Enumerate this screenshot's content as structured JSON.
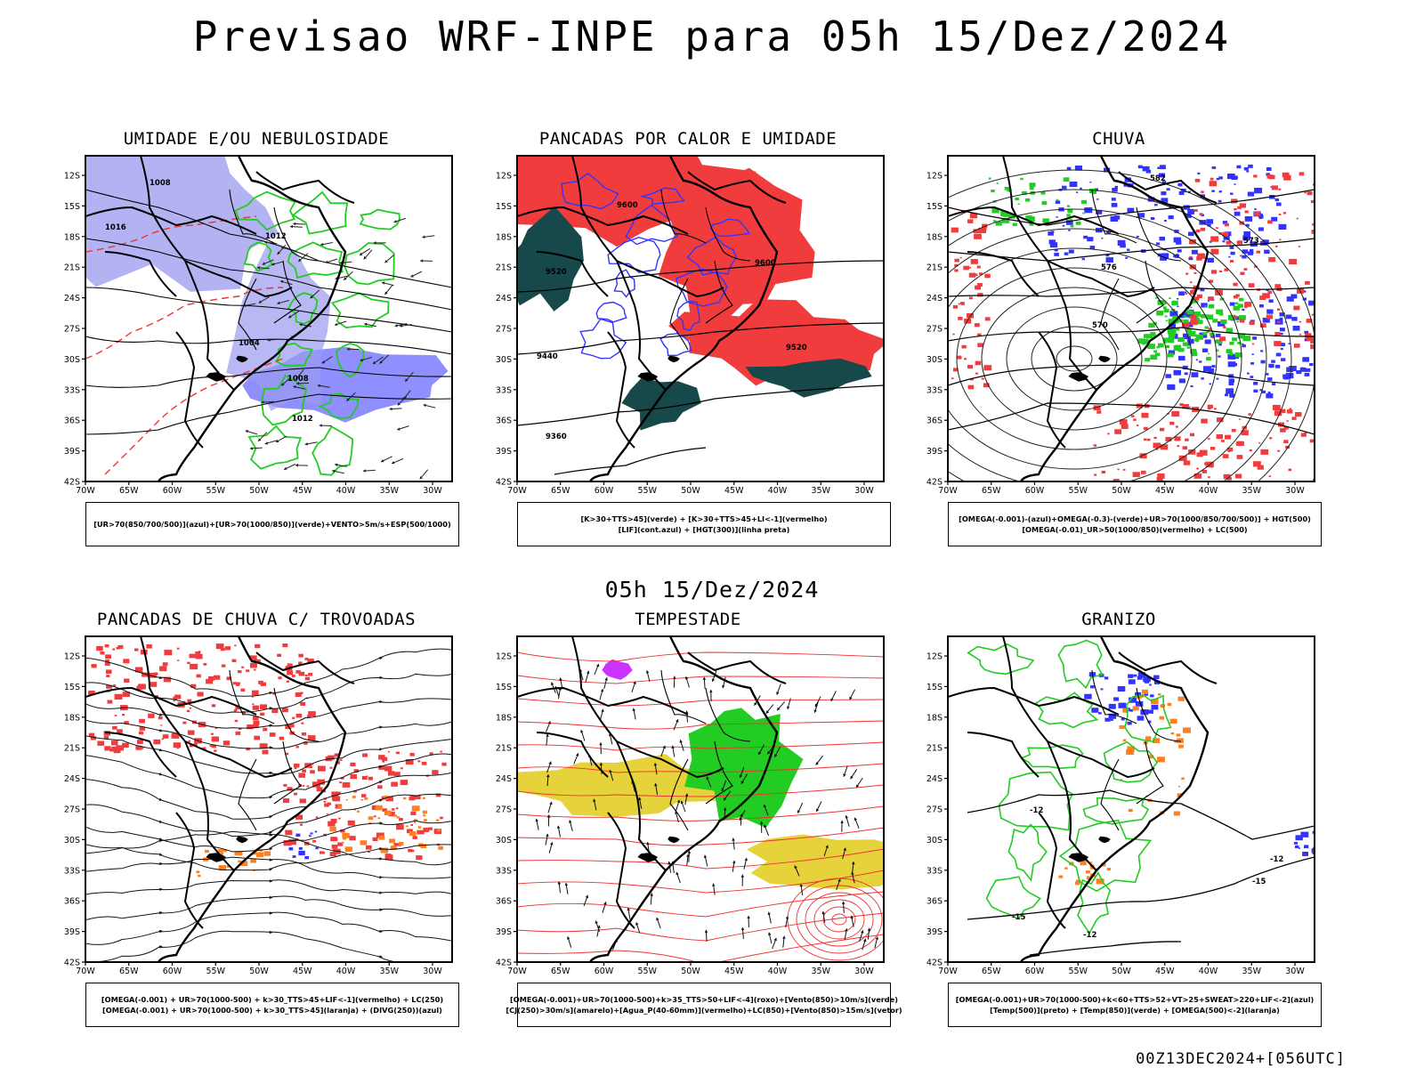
{
  "page": {
    "title": "Previsao WRF-INPE  para 05h 15/Dez/2024",
    "subtitle": "05h 15/Dez/2024",
    "footer": "00Z13DEC2024+[056UTC]"
  },
  "axes": {
    "lat_ticks": [
      "12S",
      "15S",
      "18S",
      "21S",
      "24S",
      "27S",
      "30S",
      "33S",
      "36S",
      "39S",
      "42S"
    ],
    "lon_ticks": [
      "70W",
      "65W",
      "60W",
      "55W",
      "50W",
      "45W",
      "40W",
      "35W",
      "30W"
    ]
  },
  "panels": [
    {
      "title": "UMIDADE E/OU NEBULOSIDADE",
      "legend": [
        "[UR>70(850/700/500)](azul)+[UR>70(1000/850)](verde)+VENTO>5m/s+ESP(500/1000)"
      ]
    },
    {
      "title": "PANCADAS POR CALOR E UMIDADE",
      "legend": [
        "[K>30+TTS>45](verde) + [K>30+TTS>45+LI<-1](vermelho)",
        "[LIF](cont.azul) + [HGT(300)](linha preta)"
      ]
    },
    {
      "title": "CHUVA",
      "legend": [
        "[OMEGA(-0.001)-(azul)+OMEGA(-0.3)-(verde)+UR>70(1000/850/700/500)] + HGT(500)",
        "[OMEGA(-0.01)_UR>50(1000/850)(vermelho) + LC(500)"
      ]
    },
    {
      "title": "PANCADAS DE CHUVA C/ TROVOADAS",
      "legend": [
        "[OMEGA(-0.001) + UR>70(1000-500) + k>30_TTS>45+LIF<-1](vermelho) + LC(250)",
        "[OMEGA(-0.001) + UR>70(1000-500) + k>30_TTS>45](laranja) + (DIVG(250))(azul)"
      ]
    },
    {
      "title": "TEMPESTADE",
      "legend": [
        "[OMEGA(-0.001)+UR>70(1000-500)+k>35_TTS>50+LIF<-4](roxo)+[Vento(850)>10m/s](verde)",
        "[CJ(250)>30m/s](amarelo)+[Agua_P(40-60mm)](vermelho)+LC(850)+[Vento(850)>15m/s](vetor)"
      ]
    },
    {
      "title": "GRANIZO",
      "legend": [
        "[OMEGA(-0.001)+UR>70(1000-500)+k<60+TTS>52+VT>25+SWEAT>220+LIF<-2](azul)",
        "[Temp(500)](preto) + [Temp(850)](verde) + [OMEGA(500)<-2](laranja)"
      ]
    }
  ],
  "contour_labels": {
    "p1": [
      "1008",
      "1012",
      "1016",
      "1004",
      "1008",
      "1012"
    ],
    "p2": [
      "9600",
      "9520",
      "9440",
      "9360",
      "9600",
      "9520"
    ],
    "p3": [
      "582",
      "576",
      "570",
      "573"
    ],
    "p6": [
      "-12",
      "-12",
      "-15",
      "-15",
      "-12"
    ]
  },
  "colors": {
    "blue": "#3333ff",
    "lightblue": "#9a9af0",
    "green": "#22cc22",
    "red": "#f03c3c",
    "darkteal": "#17484a",
    "orange": "#ff8020",
    "yellow": "#e6d23a",
    "purple": "#cc33ff"
  }
}
